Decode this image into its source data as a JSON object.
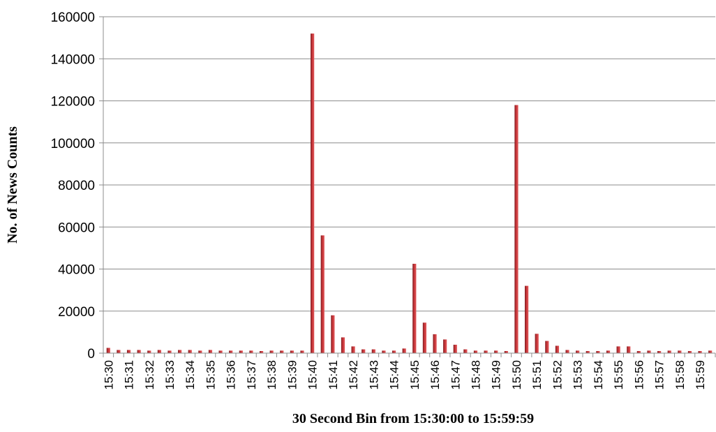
{
  "chart_data": {
    "type": "bar",
    "xlabel": "30 Second Bin from 15:30:00 to 15:59:59",
    "ylabel": "No. of News Counts",
    "ylim": [
      0,
      160000
    ],
    "yticks": [
      0,
      20000,
      40000,
      60000,
      80000,
      100000,
      120000,
      140000,
      160000
    ],
    "grid": true,
    "legend": "none",
    "bar_color": "#c8363a",
    "categories": [
      "15:30",
      "",
      "15:31",
      "",
      "15:32",
      "",
      "15:33",
      "",
      "15:34",
      "",
      "15:35",
      "",
      "15:36",
      "",
      "15:37",
      "",
      "15:38",
      "",
      "15:39",
      "",
      "15:40",
      "",
      "15:41",
      "",
      "15:42",
      "",
      "15:43",
      "",
      "15:44",
      "",
      "15:45",
      "",
      "15:46",
      "",
      "15:47",
      "",
      "15:48",
      "",
      "15:49",
      "",
      "15:50",
      "",
      "15:51",
      "",
      "15:52",
      "",
      "15:53",
      "",
      "15:54",
      "",
      "15:55",
      "",
      "15:56",
      "",
      "15:57",
      "",
      "15:58",
      "",
      "15:59",
      ""
    ],
    "values": [
      2500,
      1500,
      1500,
      1500,
      1200,
      1500,
      1200,
      1500,
      1500,
      1200,
      1500,
      1200,
      1200,
      1200,
      1200,
      1000,
      1200,
      1200,
      1200,
      1200,
      152000,
      56000,
      18000,
      7500,
      3200,
      1800,
      1800,
      1200,
      1200,
      2200,
      42500,
      14500,
      9000,
      6500,
      4000,
      1800,
      1200,
      1200,
      1200,
      1000,
      118000,
      32000,
      9200,
      5800,
      3500,
      1500,
      1200,
      1000,
      1000,
      1200,
      3200,
      3200,
      1000,
      1200,
      1000,
      1200,
      1200,
      1000,
      1000,
      1200
    ]
  }
}
